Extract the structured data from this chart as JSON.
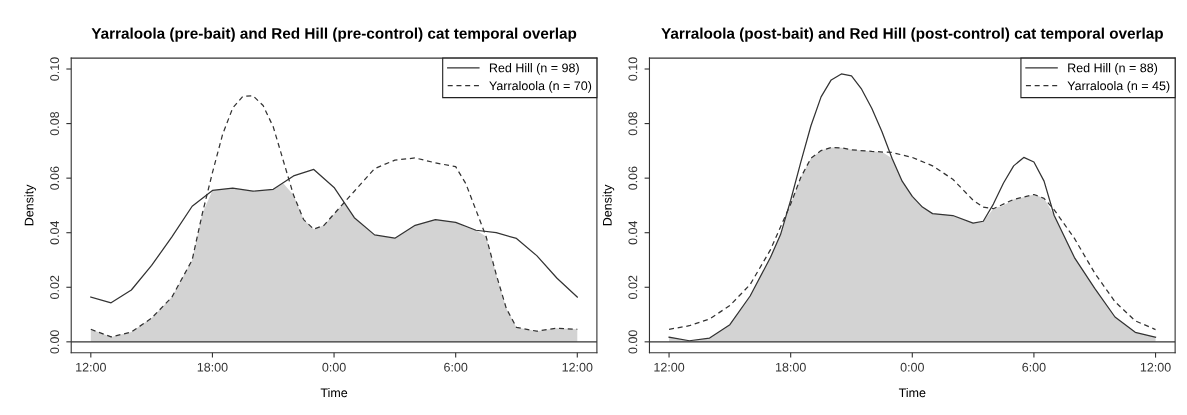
{
  "chart_data": [
    {
      "type": "line",
      "title": "Yarraloola (pre-bait) and Red Hill (pre-control) cat temporal overlap",
      "xlabel": "Time",
      "ylabel": "Density",
      "xlim": [
        "2000-01-01T11:02",
        "2000-01-02T12:58"
      ],
      "ylim": [
        -0.004,
        0.104
      ],
      "xticks": [
        {
          "value": "2000-01-01T12:00",
          "label": "12:00"
        },
        {
          "value": "2000-01-01T18:00",
          "label": "18:00"
        },
        {
          "value": "2000-01-02T00:00",
          "label": "0:00"
        },
        {
          "value": "2000-01-02T06:00",
          "label": "6:00"
        },
        {
          "value": "2000-01-02T12:00",
          "label": "12:00"
        }
      ],
      "yticks": [
        {
          "value": 0,
          "label": "0.00"
        },
        {
          "value": 0.02,
          "label": "0.02"
        },
        {
          "value": 0.04,
          "label": "0.04"
        },
        {
          "value": 0.06,
          "label": "0.06"
        },
        {
          "value": 0.08,
          "label": "0.08"
        },
        {
          "value": 0.1,
          "label": "0.10"
        }
      ],
      "grid": false,
      "legend": "top right",
      "ref_lines": [
        {
          "axis": "y",
          "value": 0,
          "color": "#333333",
          "line_style": "solid"
        }
      ],
      "series": [
        {
          "type": "area",
          "color": "#d3d3d3",
          "x": [
            "2000-01-01T12:00",
            "2000-01-01T13:00",
            "2000-01-01T14:00",
            "2000-01-01T15:00",
            "2000-01-01T16:00",
            "2000-01-01T17:00",
            "2000-01-01T17:30",
            "2000-01-01T18:00",
            "2000-01-01T18:30",
            "2000-01-01T19:00",
            "2000-01-01T19:30",
            "2000-01-01T20:00",
            "2000-01-01T20:30",
            "2000-01-01T21:00",
            "2000-01-01T21:30",
            "2000-01-01T22:00",
            "2000-01-01T22:30",
            "2000-01-01T23:00",
            "2000-01-01T23:30",
            "2000-01-02T00:00",
            "2000-01-02T00:30",
            "2000-01-02T01:00",
            "2000-01-02T02:00",
            "2000-01-02T03:00",
            "2000-01-02T04:00",
            "2000-01-02T05:00",
            "2000-01-02T06:00",
            "2000-01-02T06:30",
            "2000-01-02T07:00",
            "2000-01-02T07:30",
            "2000-01-02T08:00",
            "2000-01-02T08:30",
            "2000-01-02T09:00",
            "2000-01-02T10:00",
            "2000-01-02T11:00",
            "2000-01-02T12:00"
          ],
          "values": [
            0.0046,
            0.0018,
            0.0036,
            0.0087,
            0.0164,
            0.03,
            0.047,
            0.0555,
            0.056,
            0.0563,
            0.0557,
            0.0552,
            0.0555,
            0.0559,
            0.058,
            0.0538,
            0.0448,
            0.0413,
            0.0427,
            0.0469,
            0.051,
            0.0455,
            0.0392,
            0.038,
            0.0427,
            0.0448,
            0.0438,
            0.042,
            0.0409,
            0.0386,
            0.0247,
            0.0122,
            0.0053,
            0.0039,
            0.005,
            0.0046
          ]
        },
        {
          "name": "Red Hill (n = 98)",
          "color": "#333333",
          "line_style": "solid",
          "x": [
            "2000-01-01T12:00",
            "2000-01-01T13:00",
            "2000-01-01T14:00",
            "2000-01-01T15:00",
            "2000-01-01T16:00",
            "2000-01-01T17:00",
            "2000-01-01T18:00",
            "2000-01-01T19:00",
            "2000-01-01T20:00",
            "2000-01-01T21:00",
            "2000-01-01T22:00",
            "2000-01-01T23:00",
            "2000-01-02T00:00",
            "2000-01-02T01:00",
            "2000-01-02T02:00",
            "2000-01-02T03:00",
            "2000-01-02T04:00",
            "2000-01-02T05:00",
            "2000-01-02T06:00",
            "2000-01-02T07:00",
            "2000-01-02T08:00",
            "2000-01-02T09:00",
            "2000-01-02T10:00",
            "2000-01-02T11:00",
            "2000-01-02T12:00"
          ],
          "values": [
            0.0164,
            0.0143,
            0.019,
            0.028,
            0.0385,
            0.0497,
            0.0555,
            0.0563,
            0.0552,
            0.0559,
            0.0608,
            0.0632,
            0.0566,
            0.0455,
            0.0392,
            0.038,
            0.0427,
            0.0448,
            0.0438,
            0.0409,
            0.04,
            0.0379,
            0.0316,
            0.0233,
            0.0164
          ]
        },
        {
          "name": "Yarraloola (n = 70)",
          "color": "#333333",
          "line_style": "dashed",
          "x": [
            "2000-01-01T12:00",
            "2000-01-01T13:00",
            "2000-01-01T14:00",
            "2000-01-01T15:00",
            "2000-01-01T16:00",
            "2000-01-01T17:00",
            "2000-01-01T17:30",
            "2000-01-01T18:00",
            "2000-01-01T18:30",
            "2000-01-01T19:00",
            "2000-01-01T19:30",
            "2000-01-01T20:00",
            "2000-01-01T20:30",
            "2000-01-01T21:00",
            "2000-01-01T21:30",
            "2000-01-01T22:00",
            "2000-01-01T22:30",
            "2000-01-01T23:00",
            "2000-01-01T23:30",
            "2000-01-02T00:00",
            "2000-01-02T01:00",
            "2000-01-02T02:00",
            "2000-01-02T03:00",
            "2000-01-02T04:00",
            "2000-01-02T05:00",
            "2000-01-02T06:00",
            "2000-01-02T06:30",
            "2000-01-02T07:00",
            "2000-01-02T07:30",
            "2000-01-02T08:00",
            "2000-01-02T08:30",
            "2000-01-02T09:00",
            "2000-01-02T10:00",
            "2000-01-02T11:00",
            "2000-01-02T12:00"
          ],
          "values": [
            0.0046,
            0.0018,
            0.0036,
            0.0087,
            0.0164,
            0.03,
            0.047,
            0.062,
            0.076,
            0.0857,
            0.09,
            0.0902,
            0.0866,
            0.0788,
            0.0663,
            0.0538,
            0.0448,
            0.0413,
            0.0427,
            0.0469,
            0.0552,
            0.0635,
            0.0666,
            0.0674,
            0.0656,
            0.0642,
            0.058,
            0.0483,
            0.0386,
            0.0247,
            0.0122,
            0.0053,
            0.0039,
            0.005,
            0.0046
          ]
        }
      ]
    },
    {
      "type": "line",
      "title": "Yarraloola (post-bait) and Red Hill (post-control) cat temporal overlap",
      "xlabel": "Time",
      "ylabel": "Density",
      "xlim": [
        "2000-01-01T11:02",
        "2000-01-02T12:58"
      ],
      "ylim": [
        -0.004,
        0.104
      ],
      "xticks": [
        {
          "value": "2000-01-01T12:00",
          "label": "12:00"
        },
        {
          "value": "2000-01-01T18:00",
          "label": "18:00"
        },
        {
          "value": "2000-01-02T00:00",
          "label": "0:00"
        },
        {
          "value": "2000-01-02T06:00",
          "label": "6:00"
        },
        {
          "value": "2000-01-02T12:00",
          "label": "12:00"
        }
      ],
      "yticks": [
        {
          "value": 0,
          "label": "0.00"
        },
        {
          "value": 0.02,
          "label": "0.02"
        },
        {
          "value": 0.04,
          "label": "0.04"
        },
        {
          "value": 0.06,
          "label": "0.06"
        },
        {
          "value": 0.08,
          "label": "0.08"
        },
        {
          "value": 0.1,
          "label": "0.10"
        }
      ],
      "grid": false,
      "legend": "top right",
      "ref_lines": [
        {
          "axis": "y",
          "value": 0,
          "color": "#333333",
          "line_style": "solid"
        }
      ],
      "series": [
        {
          "type": "area",
          "color": "#d3d3d3",
          "x": [
            "2000-01-01T12:00",
            "2000-01-01T13:00",
            "2000-01-01T14:00",
            "2000-01-01T15:00",
            "2000-01-01T16:00",
            "2000-01-01T17:00",
            "2000-01-01T17:30",
            "2000-01-01T18:00",
            "2000-01-01T18:30",
            "2000-01-01T19:00",
            "2000-01-01T19:30",
            "2000-01-01T20:00",
            "2000-01-01T20:30",
            "2000-01-01T21:00",
            "2000-01-01T21:30",
            "2000-01-01T22:00",
            "2000-01-01T22:30",
            "2000-01-01T23:00",
            "2000-01-01T23:30",
            "2000-01-02T00:00",
            "2000-01-02T00:30",
            "2000-01-02T01:00",
            "2000-01-02T02:00",
            "2000-01-02T03:00",
            "2000-01-02T03:30",
            "2000-01-02T04:00",
            "2000-01-02T04:30",
            "2000-01-02T05:00",
            "2000-01-02T05:30",
            "2000-01-02T06:00",
            "2000-01-02T06:30",
            "2000-01-02T07:00",
            "2000-01-02T08:00",
            "2000-01-02T09:00",
            "2000-01-02T10:00",
            "2000-01-02T11:00",
            "2000-01-02T12:00"
          ],
          "values": [
            0.0017,
            0.0004,
            0.0014,
            0.0063,
            0.0168,
            0.0309,
            0.0393,
            0.0505,
            0.0603,
            0.0673,
            0.0701,
            0.0712,
            0.0711,
            0.0704,
            0.0701,
            0.0698,
            0.0696,
            0.0673,
            0.0589,
            0.0533,
            0.0494,
            0.047,
            0.0463,
            0.0435,
            0.0442,
            0.0488,
            0.05,
            0.0522,
            0.053,
            0.054,
            0.0526,
            0.0463,
            0.0309,
            0.0196,
            0.0091,
            0.0035,
            0.0017
          ]
        },
        {
          "name": "Red Hill (n = 88)",
          "color": "#333333",
          "line_style": "solid",
          "x": [
            "2000-01-01T12:00",
            "2000-01-01T13:00",
            "2000-01-01T14:00",
            "2000-01-01T15:00",
            "2000-01-01T16:00",
            "2000-01-01T17:00",
            "2000-01-01T17:30",
            "2000-01-01T18:00",
            "2000-01-01T18:30",
            "2000-01-01T19:00",
            "2000-01-01T19:30",
            "2000-01-01T20:00",
            "2000-01-01T20:30",
            "2000-01-01T21:00",
            "2000-01-01T21:30",
            "2000-01-01T22:00",
            "2000-01-01T22:30",
            "2000-01-01T23:00",
            "2000-01-01T23:30",
            "2000-01-02T00:00",
            "2000-01-02T00:30",
            "2000-01-02T01:00",
            "2000-01-02T02:00",
            "2000-01-02T03:00",
            "2000-01-02T03:30",
            "2000-01-02T04:00",
            "2000-01-02T04:30",
            "2000-01-02T05:00",
            "2000-01-02T05:30",
            "2000-01-02T06:00",
            "2000-01-02T06:30",
            "2000-01-02T07:00",
            "2000-01-02T08:00",
            "2000-01-02T09:00",
            "2000-01-02T10:00",
            "2000-01-02T11:00",
            "2000-01-02T12:00"
          ],
          "values": [
            0.0017,
            0.0004,
            0.0014,
            0.0063,
            0.0168,
            0.0309,
            0.0393,
            0.0519,
            0.0659,
            0.0792,
            0.0898,
            0.096,
            0.0982,
            0.0975,
            0.0926,
            0.0856,
            0.0771,
            0.0673,
            0.0589,
            0.0533,
            0.0494,
            0.047,
            0.0463,
            0.0435,
            0.0442,
            0.0505,
            0.0582,
            0.0645,
            0.0676,
            0.0659,
            0.0589,
            0.0463,
            0.0309,
            0.0196,
            0.0091,
            0.0035,
            0.0017
          ]
        },
        {
          "name": "Yarraloola (n = 45)",
          "color": "#333333",
          "line_style": "dashed",
          "x": [
            "2000-01-01T12:00",
            "2000-01-01T13:00",
            "2000-01-01T14:00",
            "2000-01-01T15:00",
            "2000-01-01T16:00",
            "2000-01-01T17:00",
            "2000-01-01T18:00",
            "2000-01-01T18:30",
            "2000-01-01T19:00",
            "2000-01-01T19:30",
            "2000-01-01T20:00",
            "2000-01-01T20:30",
            "2000-01-01T21:00",
            "2000-01-01T22:00",
            "2000-01-01T23:00",
            "2000-01-02T00:00",
            "2000-01-02T01:00",
            "2000-01-02T02:00",
            "2000-01-02T03:00",
            "2000-01-02T03:30",
            "2000-01-02T04:00",
            "2000-01-02T05:00",
            "2000-01-02T06:00",
            "2000-01-02T06:30",
            "2000-01-02T07:00",
            "2000-01-02T08:00",
            "2000-01-02T09:00",
            "2000-01-02T10:00",
            "2000-01-02T11:00",
            "2000-01-02T12:00"
          ],
          "values": [
            0.0046,
            0.0059,
            0.0084,
            0.0133,
            0.021,
            0.0337,
            0.0505,
            0.0603,
            0.0673,
            0.0701,
            0.0712,
            0.0711,
            0.0704,
            0.0698,
            0.0694,
            0.0676,
            0.0645,
            0.0596,
            0.0519,
            0.0494,
            0.0488,
            0.0522,
            0.054,
            0.0526,
            0.0484,
            0.0379,
            0.0252,
            0.0147,
            0.0077,
            0.0045
          ]
        }
      ]
    }
  ]
}
